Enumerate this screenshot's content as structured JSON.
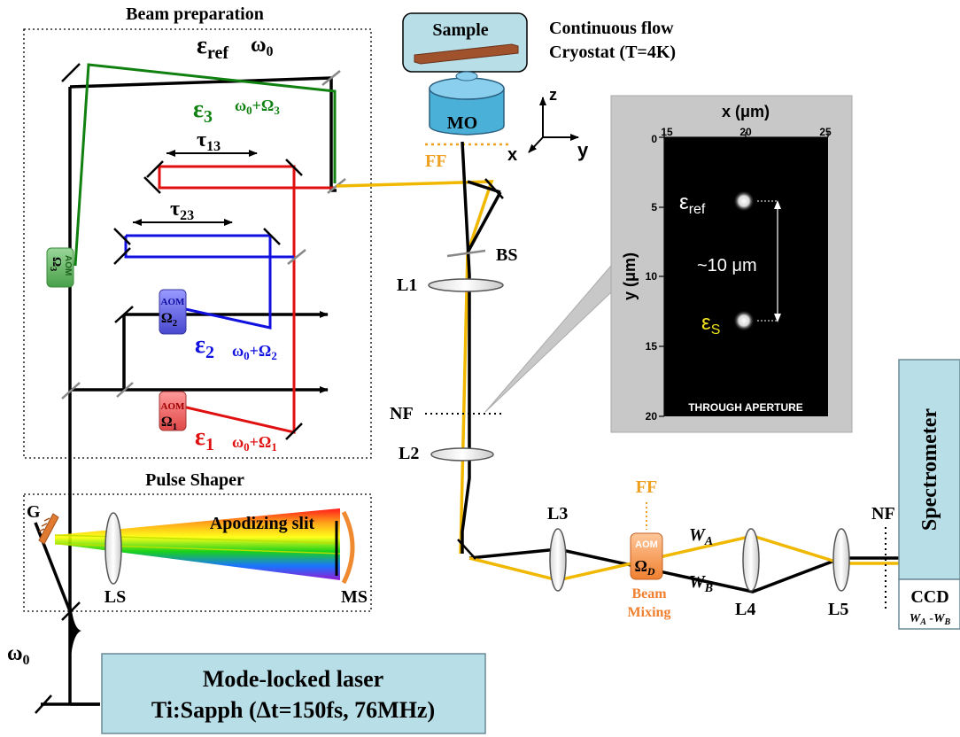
{
  "sections": {
    "beam_prep": "Beam preparation",
    "pulse_shaper": "Pulse Shaper"
  },
  "fields": {
    "eps_ref": "ε",
    "eps_ref_sub": "ref",
    "omega0": "ω",
    "omega0_sub": "0",
    "eps3": "ε",
    "eps3_sub": "3",
    "eps3_freq": "ω",
    "eps3_freq_sub1": "0",
    "eps3_freq_mid": "+Ω",
    "eps3_freq_sub2": "3",
    "tau13": "τ",
    "tau13_sub": "13",
    "tau23": "τ",
    "tau23_sub": "23",
    "eps2": "ε",
    "eps2_sub": "2",
    "eps2_freq_sub2": "2",
    "eps1": "ε",
    "eps1_sub": "1",
    "eps1_freq_sub2": "1"
  },
  "aom": {
    "label": "AOM",
    "aom3_omega": "Ω",
    "aom3_sub": "3",
    "aom2_omega": "Ω",
    "aom2_sub": "2",
    "aom1_omega": "Ω",
    "aom1_sub": "1",
    "aomd_omega": "Ω",
    "aomd_sub": "D"
  },
  "pulse_shaper": {
    "grating": "G",
    "lens": "LS",
    "slit": "Apodizing slit",
    "mirror": "MS"
  },
  "laser": {
    "line1": "Mode-locked laser",
    "line2": "Ti:Sapph (Δt=150fs, 76MHz)",
    "omega_label": "ω",
    "omega_sub": "0"
  },
  "sample": {
    "label": "Sample",
    "cryo1": "Continuous flow",
    "cryo2": "Cryostat (T=4K)",
    "objective": "MO",
    "ff": "FF",
    "axis_z": "z",
    "axis_x": "x",
    "axis_y": "y"
  },
  "optics": {
    "bs": "BS",
    "l1": "L1",
    "nf": "NF",
    "l2": "L2",
    "l3": "L3",
    "l4": "L4",
    "l5": "L5",
    "nf2": "NF",
    "ff2": "FF",
    "beam_mixing1": "Beam",
    "beam_mixing2": "Mixing",
    "wa": "W",
    "wa_sub": "A",
    "wb": "W",
    "wb_sub": "B"
  },
  "detection": {
    "spectrometer": "Spectrometer",
    "ccd": "CCD",
    "ccd_sub_w1": "W",
    "ccd_sub_a": "A",
    "ccd_sub_dash": " -",
    "ccd_sub_w2": "W",
    "ccd_sub_b": "B"
  },
  "inset": {
    "xlabel": "x (μm)",
    "ylabel": "y (μm)",
    "xticks": [
      "15",
      "20",
      "25"
    ],
    "yticks": [
      "0",
      "5",
      "10",
      "15",
      "20"
    ],
    "spot_ref": "ε",
    "spot_ref_sub": "ref",
    "spot_s": "ε",
    "spot_s_sub": "S",
    "distance": "~10 μm",
    "caption": "THROUGH APERTURE"
  },
  "colors": {
    "red": "#e01010",
    "green": "#108010",
    "blue": "#1010e0",
    "orange": "#f0a020",
    "yellow": "#f0b800",
    "light_blue": "#b8dfe8",
    "sample_brown": "#a0522d"
  }
}
